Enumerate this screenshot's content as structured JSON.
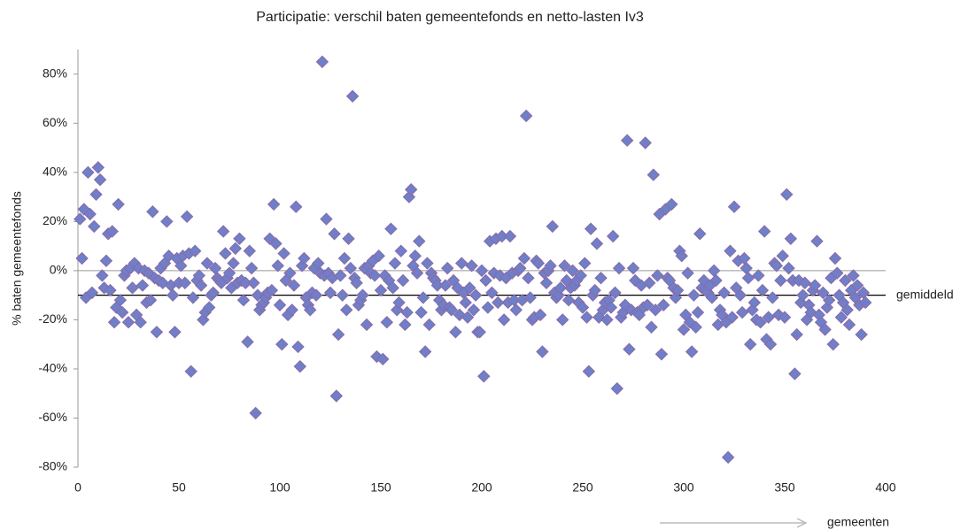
{
  "chart_data": {
    "type": "scatter",
    "title": "Participatie: verschil baten gemeentefonds en netto-lasten Iv3",
    "ylabel": "% baten gemeentefonds",
    "xlabel": "gemeenten",
    "mean_line": {
      "value": -10,
      "label": "gemiddeld"
    },
    "color": "#6f7fc8",
    "xlim": [
      0,
      400
    ],
    "xticks": [
      0,
      50,
      100,
      150,
      200,
      250,
      300,
      350,
      400
    ],
    "ylim": [
      -80,
      90
    ],
    "yticks": [
      {
        "value": -80,
        "label": "-80%"
      },
      {
        "value": -60,
        "label": "-60%"
      },
      {
        "value": -40,
        "label": "-40%"
      },
      {
        "value": -20,
        "label": "-20%"
      },
      {
        "value": 0,
        "label": "0%"
      },
      {
        "value": 20,
        "label": "20%"
      },
      {
        "value": 40,
        "label": "40%"
      },
      {
        "value": 60,
        "label": "60%"
      },
      {
        "value": 80,
        "label": "80%"
      }
    ],
    "x": [
      1,
      2,
      3,
      4,
      5,
      6,
      7,
      8,
      9,
      10,
      11,
      12,
      13,
      14,
      15,
      16,
      17,
      18,
      19,
      20,
      21,
      22,
      23,
      24,
      25,
      26,
      27,
      28,
      29,
      30,
      31,
      32,
      33,
      34,
      35,
      36,
      37,
      38,
      39,
      40,
      41,
      42,
      43,
      44,
      45,
      46,
      47,
      48,
      49,
      50,
      51,
      52,
      53,
      54,
      55,
      56,
      57,
      58,
      59,
      60,
      61,
      62,
      63,
      64,
      65,
      66,
      67,
      68,
      69,
      70,
      71,
      72,
      73,
      74,
      75,
      76,
      77,
      78,
      79,
      80,
      81,
      82,
      83,
      84,
      85,
      86,
      87,
      88,
      89,
      90,
      91,
      92,
      93,
      94,
      95,
      96,
      97,
      98,
      99,
      100,
      101,
      102,
      103,
      104,
      105,
      106,
      107,
      108,
      109,
      110,
      111,
      112,
      113,
      114,
      115,
      116,
      117,
      118,
      119,
      120,
      121,
      122,
      123,
      124,
      125,
      126,
      127,
      128,
      129,
      130,
      131,
      132,
      133,
      134,
      135,
      136,
      137,
      138,
      139,
      140,
      141,
      142,
      143,
      144,
      145,
      146,
      147,
      148,
      149,
      150,
      151,
      152,
      153,
      154,
      155,
      156,
      157,
      158,
      159,
      160,
      161,
      162,
      163,
      164,
      165,
      166,
      167,
      168,
      169,
      170,
      171,
      172,
      173,
      174,
      175,
      176,
      177,
      178,
      179,
      180,
      181,
      182,
      183,
      184,
      185,
      186,
      187,
      188,
      189,
      190,
      191,
      192,
      193,
      194,
      195,
      196,
      197,
      198,
      199,
      200,
      201,
      202,
      203,
      204,
      205,
      206,
      207,
      208,
      209,
      210,
      211,
      212,
      213,
      214,
      215,
      216,
      217,
      218,
      219,
      220,
      221,
      222,
      223,
      224,
      225,
      226,
      227,
      228,
      229,
      230,
      231,
      232,
      233,
      234,
      235,
      236,
      237,
      238,
      239,
      240,
      241,
      242,
      243,
      244,
      245,
      246,
      247,
      248,
      249,
      250,
      251,
      252,
      253,
      254,
      255,
      256,
      257,
      258,
      259,
      260,
      261,
      262,
      263,
      264,
      265,
      266,
      267,
      268,
      269,
      270,
      271,
      272,
      273,
      274,
      275,
      276,
      277,
      278,
      279,
      280,
      281,
      282,
      283,
      284,
      285,
      286,
      287,
      288,
      289,
      290,
      291,
      292,
      293,
      294,
      295,
      296,
      297,
      298,
      299,
      300,
      301,
      302,
      303,
      304,
      305,
      306,
      307,
      308,
      309,
      310,
      311,
      312,
      313,
      314,
      315,
      316,
      317,
      318,
      319,
      320,
      321,
      322,
      323,
      324,
      325,
      326,
      327,
      328,
      329,
      330,
      331,
      332,
      333,
      334,
      335,
      336,
      337,
      338,
      339,
      340,
      341,
      342,
      343,
      344,
      345,
      346,
      347,
      348,
      349,
      350,
      351,
      352,
      353,
      354,
      355,
      356,
      357,
      358,
      359,
      360,
      361,
      362,
      363,
      364,
      365,
      366,
      367,
      368,
      369,
      370,
      371,
      372,
      373,
      374,
      375,
      376,
      377,
      378,
      379,
      380,
      381,
      382,
      383,
      384,
      385,
      386,
      387,
      388,
      389,
      390
    ],
    "values": [
      21,
      5,
      25,
      -11,
      40,
      23,
      -9,
      18,
      31,
      42,
      37,
      -2,
      -7,
      4,
      15,
      -8,
      16,
      -21,
      -15,
      27,
      -12,
      -17,
      -2,
      0,
      -21,
      1,
      -7,
      3,
      -18,
      1,
      -21,
      -6,
      0,
      -13,
      -1,
      -12,
      24,
      -3,
      -25,
      -4,
      1,
      -5,
      3,
      20,
      6,
      -6,
      -10,
      -25,
      5,
      -5,
      2,
      6,
      -5,
      22,
      7,
      -41,
      -11,
      8,
      -4,
      -2,
      -6,
      -20,
      -17,
      3,
      -15,
      -10,
      -9,
      1,
      -3,
      -4,
      -5,
      16,
      7,
      -3,
      -1,
      -7,
      3,
      9,
      -5,
      13,
      -4,
      -12,
      -5,
      -29,
      8,
      1,
      -5,
      -58,
      -10,
      -16,
      -14,
      -13,
      -11,
      -9,
      13,
      -8,
      27,
      11,
      2,
      -14,
      -30,
      7,
      -4,
      -18,
      -1,
      -16,
      -6,
      26,
      -31,
      -39,
      2,
      5,
      -11,
      -14,
      -16,
      -9,
      1,
      -10,
      3,
      -1,
      85,
      -2,
      21,
      -1,
      -9,
      -3,
      15,
      -51,
      -26,
      -2,
      -10,
      5,
      -16,
      13,
      1,
      71,
      -3,
      -5,
      -14,
      -12,
      -10,
      1,
      -22,
      2,
      -1,
      4,
      -2,
      -35,
      6,
      -8,
      -36,
      -2,
      -21,
      -4,
      17,
      -7,
      3,
      -16,
      -13,
      8,
      -4,
      -22,
      -17,
      30,
      33,
      2,
      6,
      -1,
      12,
      -17,
      -11,
      -33,
      3,
      -22,
      -1,
      -3,
      -4,
      -6,
      -12,
      -16,
      -14,
      -6,
      1,
      -15,
      -16,
      -4,
      -25,
      -7,
      -18,
      3,
      -9,
      -13,
      -19,
      -7,
      2,
      -16,
      -10,
      -25,
      -25,
      0,
      -43,
      -4,
      -15,
      12,
      -9,
      -1,
      13,
      -13,
      -2,
      14,
      -20,
      -3,
      -13,
      14,
      -1,
      -12,
      -16,
      0,
      1,
      -12,
      5,
      63,
      -3,
      -11,
      -20,
      -19,
      4,
      3,
      -18,
      -33,
      -1,
      -5,
      0,
      2,
      18,
      -9,
      -11,
      -10,
      -7,
      -20,
      2,
      -4,
      -12,
      -7,
      0,
      -6,
      -4,
      -13,
      -2,
      -15,
      3,
      -19,
      -41,
      17,
      -10,
      -8,
      11,
      -19,
      -3,
      -16,
      -13,
      -20,
      -12,
      -15,
      14,
      -9,
      -48,
      1,
      -19,
      -17,
      -14,
      53,
      -32,
      -16,
      1,
      -4,
      -17,
      -18,
      -6,
      -15,
      52,
      -14,
      -5,
      -23,
      39,
      -16,
      -2,
      23,
      -34,
      -14,
      25,
      -3,
      -4,
      27,
      -7,
      -11,
      -8,
      8,
      6,
      -24,
      -18,
      -1,
      -21,
      -33,
      -10,
      -23,
      -17,
      15,
      -7,
      -4,
      -8,
      -9,
      -6,
      -11,
      0,
      -4,
      -22,
      -16,
      -18,
      -9,
      -21,
      -76,
      8,
      -19,
      26,
      -7,
      4,
      -10,
      -17,
      5,
      1,
      -3,
      -30,
      -16,
      -13,
      -20,
      -2,
      -21,
      -8,
      16,
      -28,
      -19,
      -30,
      -11,
      3,
      2,
      -18,
      -4,
      6,
      -19,
      31,
      1,
      13,
      -4,
      -42,
      -26,
      -4,
      -13,
      -10,
      -5,
      -20,
      -14,
      -17,
      -8,
      -6,
      12,
      -18,
      -21,
      -9,
      -24,
      -15,
      -12,
      -3,
      -30,
      5,
      -1,
      -10,
      -19,
      -13,
      -4,
      -16,
      -22,
      -8,
      -2,
      -11,
      -6,
      -14,
      -26,
      -9,
      -13
    ]
  }
}
